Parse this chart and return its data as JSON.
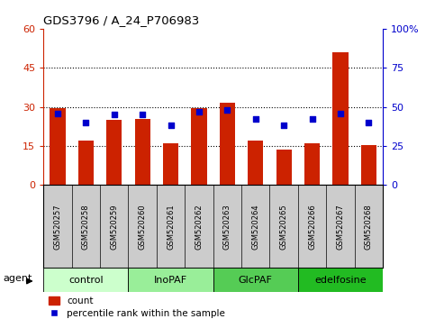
{
  "title": "GDS3796 / A_24_P706983",
  "samples": [
    "GSM520257",
    "GSM520258",
    "GSM520259",
    "GSM520260",
    "GSM520261",
    "GSM520262",
    "GSM520263",
    "GSM520264",
    "GSM520265",
    "GSM520266",
    "GSM520267",
    "GSM520268"
  ],
  "count_values": [
    29.5,
    17.0,
    25.0,
    25.5,
    16.0,
    29.5,
    31.5,
    17.0,
    13.5,
    16.0,
    51.0,
    15.5
  ],
  "percentile_values": [
    46,
    40,
    45,
    45,
    38,
    47,
    48,
    42,
    38,
    42,
    46,
    40
  ],
  "groups": [
    {
      "label": "control",
      "start": 0,
      "end": 3,
      "color": "#ccffcc"
    },
    {
      "label": "InoPAF",
      "start": 3,
      "end": 6,
      "color": "#99ee99"
    },
    {
      "label": "GlcPAF",
      "start": 6,
      "end": 9,
      "color": "#55cc55"
    },
    {
      "label": "edelfosine",
      "start": 9,
      "end": 12,
      "color": "#22bb22"
    }
  ],
  "bar_color": "#cc2200",
  "dot_color": "#0000cc",
  "left_ylim": [
    0,
    60
  ],
  "right_ylim": [
    0,
    100
  ],
  "left_yticks": [
    0,
    15,
    30,
    45,
    60
  ],
  "right_yticks": [
    0,
    25,
    50,
    75,
    100
  ],
  "right_yticklabels": [
    "0",
    "25",
    "50",
    "75",
    "100%"
  ],
  "grid_yticks": [
    15,
    30,
    45
  ],
  "left_ylabel_color": "#cc2200",
  "right_ylabel_color": "#0000cc",
  "legend_count_label": "count",
  "legend_percentile_label": "percentile rank within the sample",
  "agent_label": "agent",
  "sample_box_color": "#cccccc",
  "plot_bg_color": "#ffffff"
}
